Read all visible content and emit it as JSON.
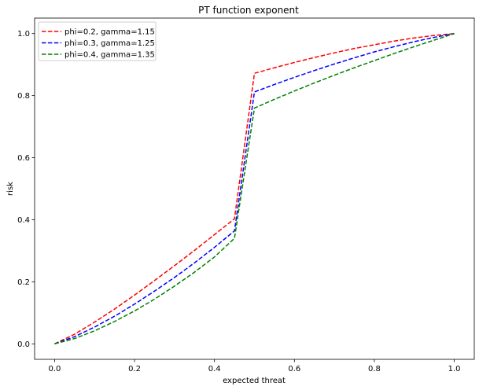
{
  "chart_data": {
    "type": "line",
    "title": "PT function exponent",
    "xlabel": "expected threat",
    "ylabel": "risk",
    "xlim": [
      -0.05,
      1.05
    ],
    "ylim": [
      -0.05,
      1.05
    ],
    "xticks": [
      0.0,
      0.2,
      0.4,
      0.6,
      0.8,
      1.0
    ],
    "yticks": [
      0.0,
      0.2,
      0.4,
      0.6,
      0.8,
      1.0
    ],
    "tick_labels_x": [
      "0.0",
      "0.2",
      "0.4",
      "0.6",
      "0.8",
      "1.0"
    ],
    "tick_labels_y": [
      "0.0",
      "0.2",
      "0.4",
      "0.6",
      "0.8",
      "1.0"
    ],
    "grid": false,
    "legend_position": "top-left",
    "series": [
      {
        "name": "phi=0.2, gamma=1.15",
        "color": "#ff0000",
        "x": [
          0.0,
          0.05,
          0.1,
          0.15,
          0.2,
          0.25,
          0.3,
          0.35,
          0.4,
          0.45,
          0.5,
          0.55,
          0.6,
          0.65,
          0.7,
          0.75,
          0.8,
          0.85,
          0.9,
          0.95,
          1.0
        ],
        "y": [
          0.0,
          0.031,
          0.07,
          0.112,
          0.157,
          0.204,
          0.252,
          0.301,
          0.352,
          0.403,
          0.872,
          0.89,
          0.907,
          0.923,
          0.938,
          0.952,
          0.964,
          0.976,
          0.986,
          0.994,
          1.0
        ]
      },
      {
        "name": "phi=0.3, gamma=1.25",
        "color": "#0000ff",
        "x": [
          0.0,
          0.05,
          0.1,
          0.15,
          0.2,
          0.25,
          0.3,
          0.35,
          0.4,
          0.45,
          0.5,
          0.55,
          0.6,
          0.65,
          0.7,
          0.75,
          0.8,
          0.85,
          0.9,
          0.95,
          1.0
        ],
        "y": [
          0.0,
          0.023,
          0.054,
          0.089,
          0.128,
          0.17,
          0.214,
          0.261,
          0.311,
          0.364,
          0.812,
          0.836,
          0.859,
          0.881,
          0.902,
          0.922,
          0.941,
          0.958,
          0.974,
          0.988,
          1.0
        ]
      },
      {
        "name": "phi=0.4, gamma=1.35",
        "color": "#008000",
        "x": [
          0.0,
          0.05,
          0.1,
          0.15,
          0.2,
          0.25,
          0.3,
          0.35,
          0.4,
          0.45,
          0.5,
          0.55,
          0.6,
          0.65,
          0.7,
          0.75,
          0.8,
          0.85,
          0.9,
          0.95,
          1.0
        ],
        "y": [
          0.0,
          0.017,
          0.042,
          0.072,
          0.106,
          0.144,
          0.186,
          0.231,
          0.28,
          0.34,
          0.76,
          0.788,
          0.815,
          0.841,
          0.866,
          0.89,
          0.913,
          0.936,
          0.958,
          0.979,
          1.0
        ]
      }
    ]
  }
}
